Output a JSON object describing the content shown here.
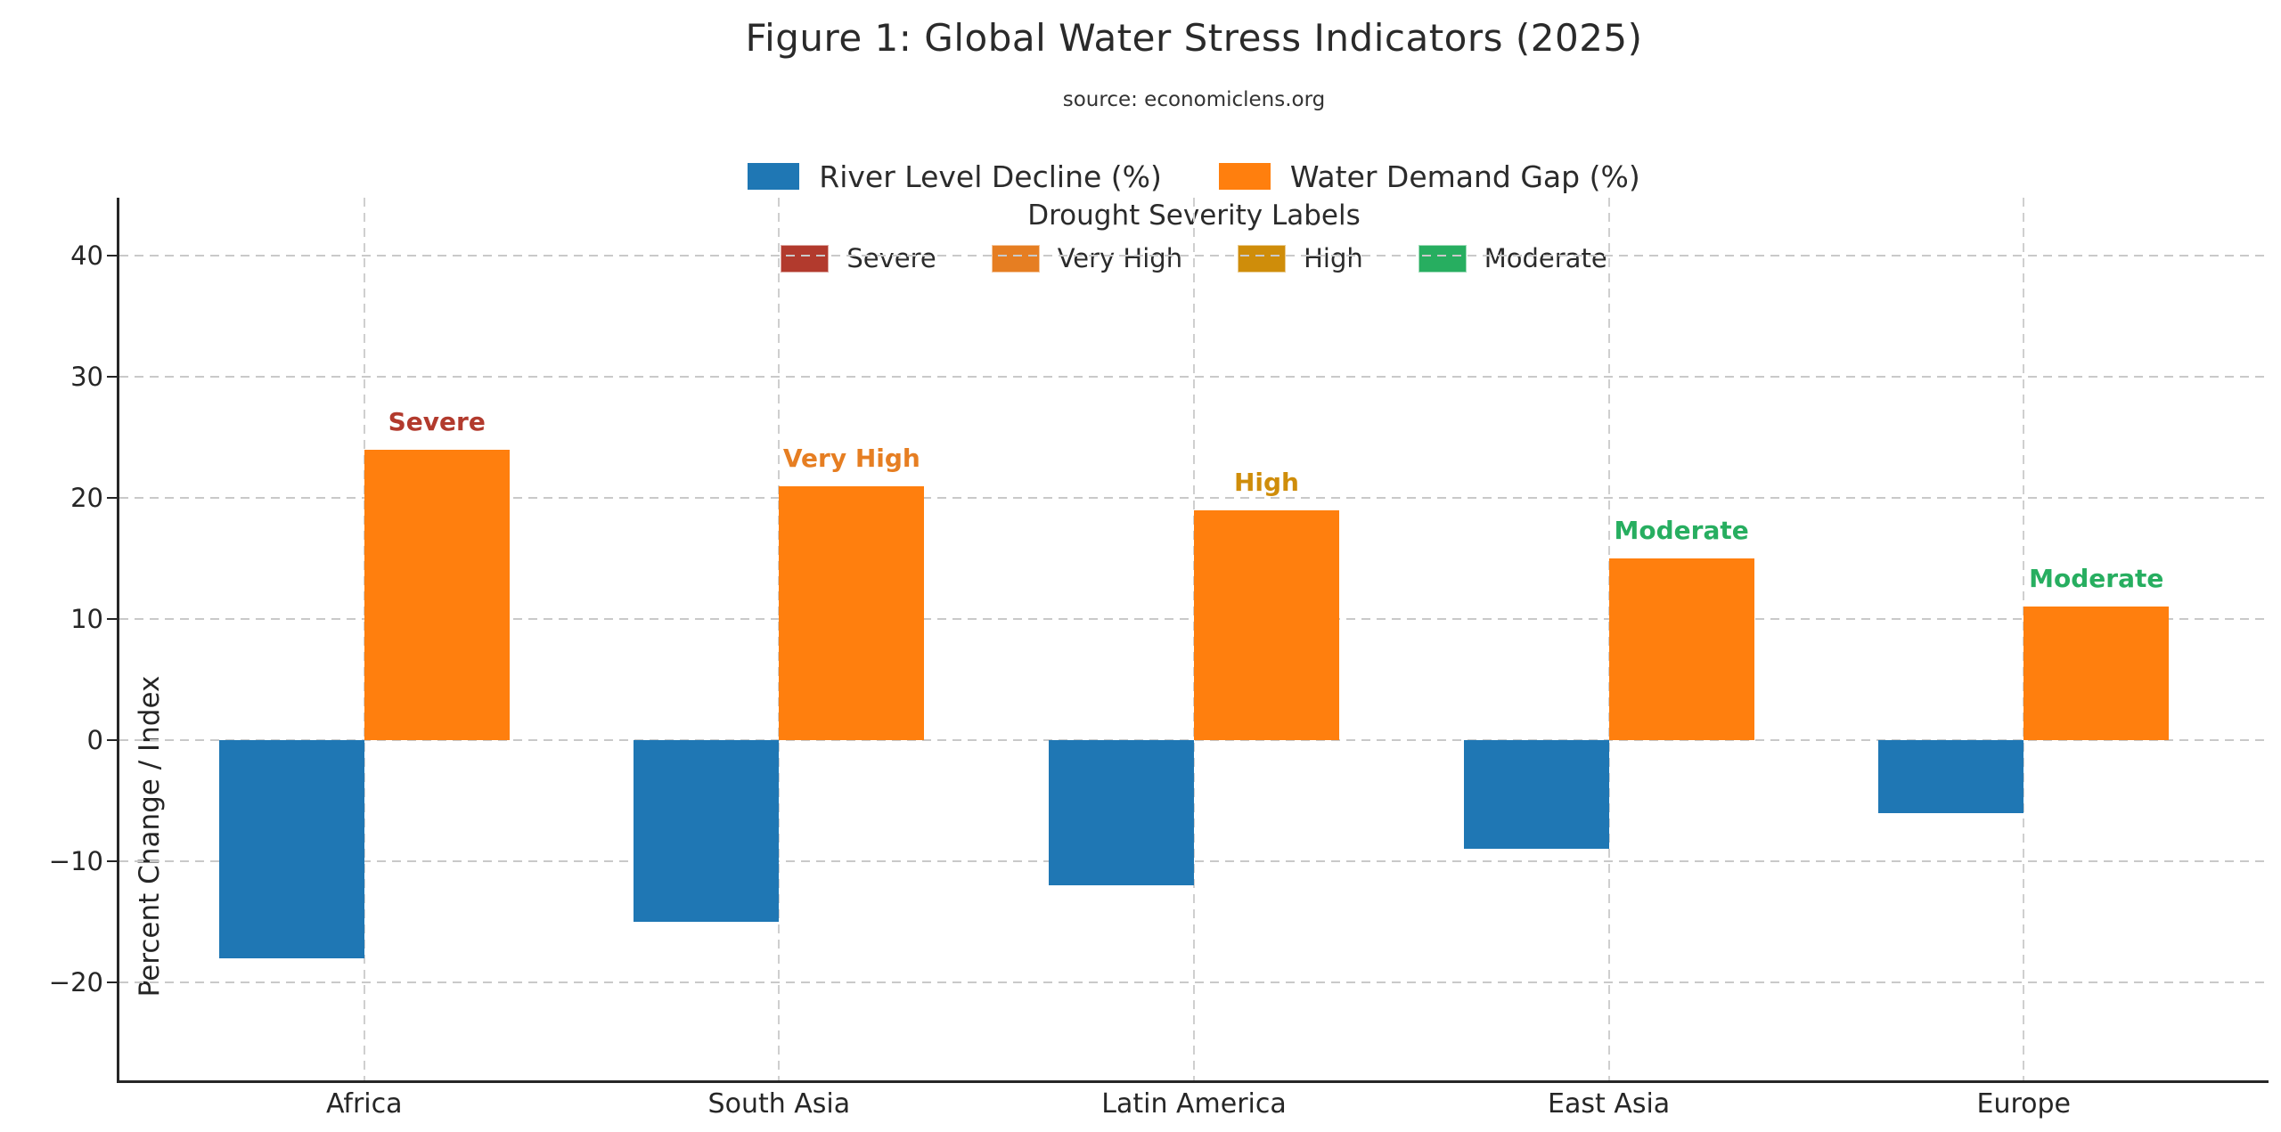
{
  "page": {
    "background": "#ffffff"
  },
  "header": {
    "title": "Figure 1: Global Water Stress Indicators (2025)",
    "subtitle": "source: economiclens.org"
  },
  "series_legend": {
    "items": [
      {
        "label": "River Level Decline (%)",
        "color": "#1f77b4"
      },
      {
        "label": "Water Demand Gap (%)",
        "color": "#ff7f0e"
      }
    ]
  },
  "severity_legend": {
    "title": "Drought Severity Labels",
    "items": [
      {
        "label": "Severe",
        "color": "#b23a2d"
      },
      {
        "label": "Very High",
        "color": "#e67e22"
      },
      {
        "label": "High",
        "color": "#cf8d0a"
      },
      {
        "label": "Moderate",
        "color": "#27ae60"
      }
    ]
  },
  "chart_data": {
    "type": "bar",
    "title": "Figure 1: Global Water Stress Indicators (2025)",
    "subtitle": "source: economiclens.org",
    "categories": [
      "Africa",
      "South Asia",
      "Latin America",
      "East Asia",
      "Europe"
    ],
    "series": [
      {
        "name": "River Level Decline (%)",
        "color": "#1f77b4",
        "values": [
          -18,
          -15,
          -12,
          -9,
          -6
        ]
      },
      {
        "name": "Water Demand Gap (%)",
        "color": "#ff7f0e",
        "values": [
          24,
          21,
          19,
          15,
          11
        ]
      }
    ],
    "annotations": [
      {
        "category": "Africa",
        "label": "Severe",
        "color": "#b23a2d"
      },
      {
        "category": "South Asia",
        "label": "Very High",
        "color": "#e67e22"
      },
      {
        "category": "Latin America",
        "label": "High",
        "color": "#cf8d0a"
      },
      {
        "category": "East Asia",
        "label": "Moderate",
        "color": "#27ae60"
      },
      {
        "category": "Europe",
        "label": "Moderate",
        "color": "#27ae60"
      }
    ],
    "xlabel": "",
    "ylabel": "Percent Change / Index",
    "yticks": [
      -20,
      -10,
      0,
      10,
      20,
      30,
      40
    ],
    "ylim": [
      -28.1,
      44.8
    ],
    "grid": true,
    "grid_style": "dashed",
    "legend_position": "top-center",
    "axis_color": "#262626",
    "grid_color": "#c9c9c9"
  }
}
